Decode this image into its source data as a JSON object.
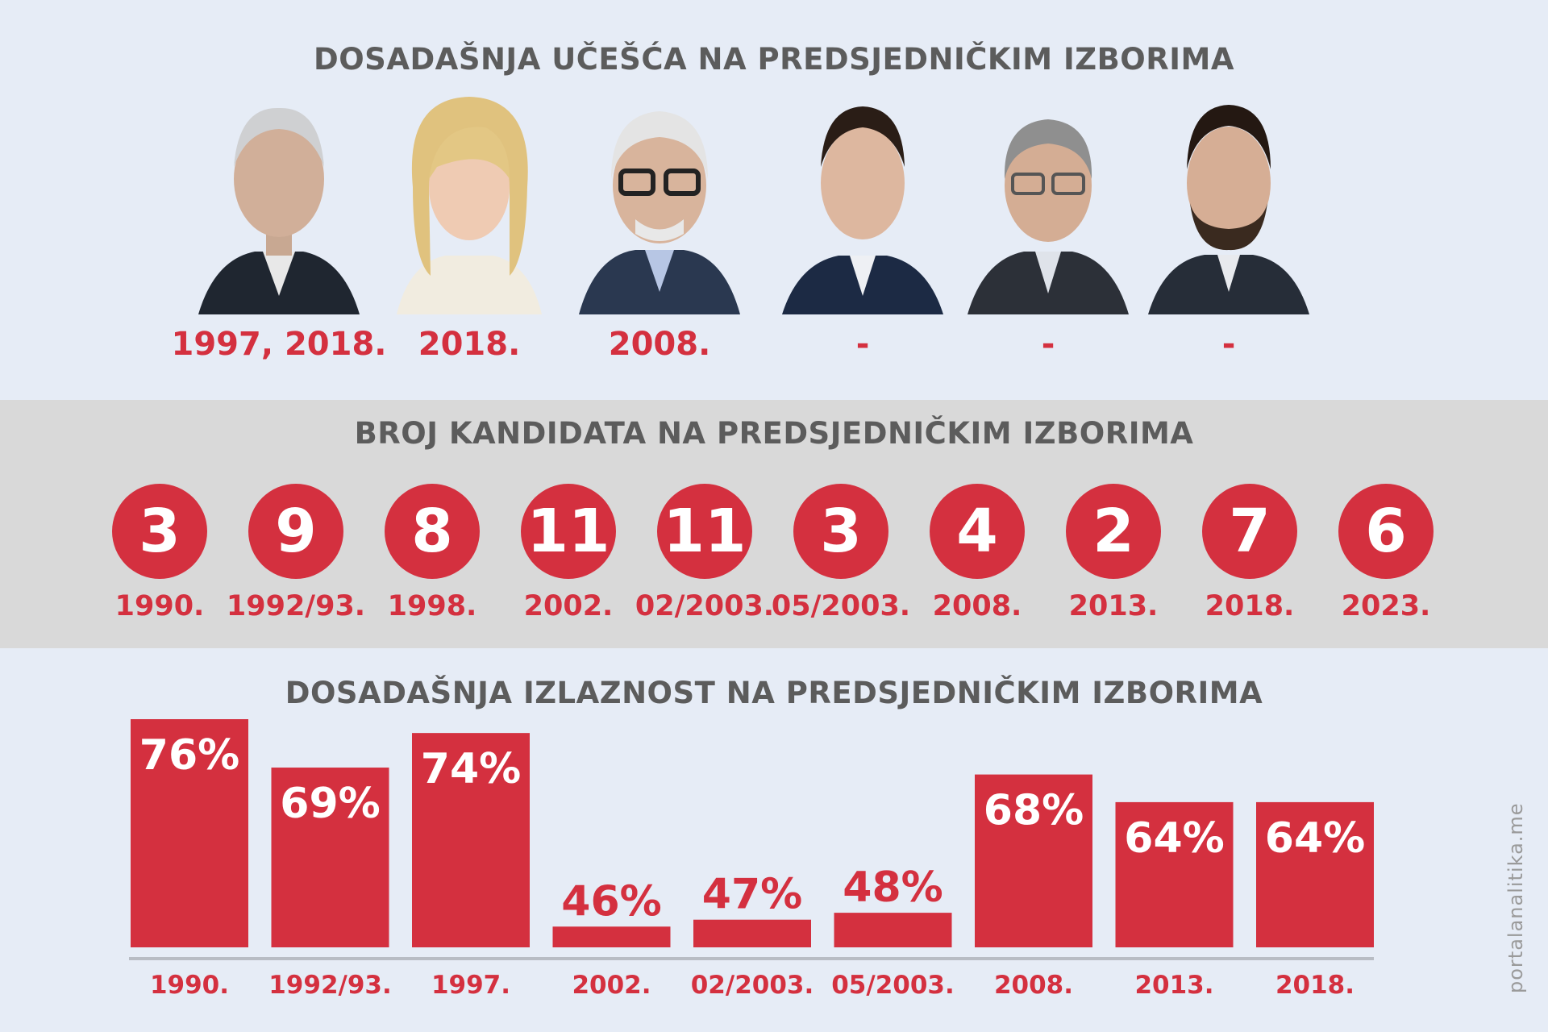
{
  "section_participation": {
    "title": "DOSADAŠNJA UČEŠĆA NA PREDSJEDNIČKIM IZBORIMA",
    "candidates": [
      {
        "years": "1997, 2018."
      },
      {
        "years": "2018."
      },
      {
        "years": "2008."
      },
      {
        "years": "-"
      },
      {
        "years": "-"
      },
      {
        "years": "-"
      }
    ]
  },
  "section_candidates_count": {
    "title": "BROJ KANDIDATA NA PREDSJEDNIČKIM IZBORIMA",
    "elections": [
      {
        "year": "1990.",
        "count": "3"
      },
      {
        "year": "1992/93.",
        "count": "9"
      },
      {
        "year": "1998.",
        "count": "8"
      },
      {
        "year": "2002.",
        "count": "11"
      },
      {
        "year": "02/2003.",
        "count": "11"
      },
      {
        "year": "05/2003.",
        "count": "3"
      },
      {
        "year": "2008.",
        "count": "4"
      },
      {
        "year": "2013.",
        "count": "2"
      },
      {
        "year": "2018.",
        "count": "7"
      },
      {
        "year": "2023.",
        "count": "6"
      }
    ]
  },
  "chart_data": {
    "type": "bar",
    "title": "DOSADAŠNJA IZLAZNOST NA PREDSJEDNIČKIM IZBORIMA",
    "categories": [
      "1990.",
      "1992/93.",
      "1997.",
      "2002.",
      "02/2003.",
      "05/2003.",
      "2008.",
      "2013.",
      "2018."
    ],
    "values": [
      76,
      69,
      74,
      46,
      47,
      48,
      68,
      64,
      64
    ],
    "value_labels": [
      "76%",
      "69%",
      "74%",
      "46%",
      "47%",
      "48%",
      "68%",
      "64%",
      "64%"
    ],
    "ylim": [
      43,
      76
    ],
    "grid": false,
    "colors": {
      "bar": "#d4303f",
      "axis": "#b8bcc4"
    }
  },
  "credit": "portalanalitika.me"
}
